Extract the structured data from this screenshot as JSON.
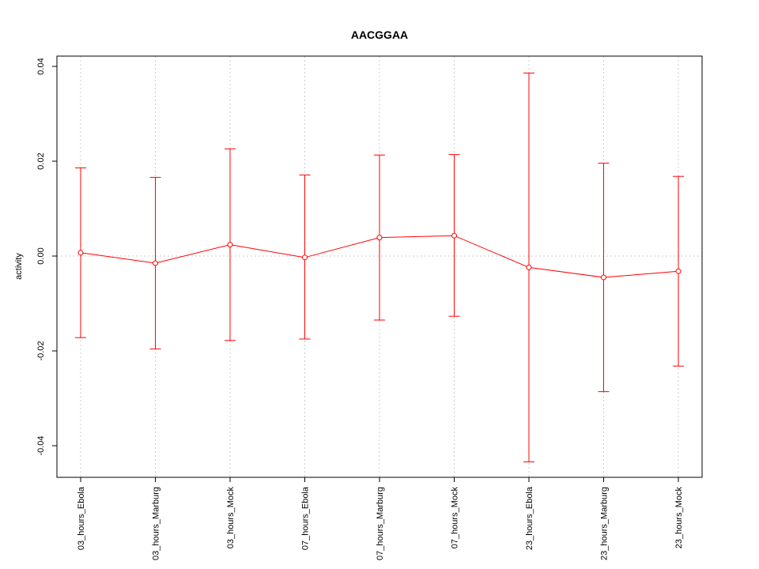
{
  "chart_data": {
    "type": "line",
    "title": "AACGGAA",
    "xlabel": "",
    "ylabel": "activity",
    "categories": [
      "03_hours_Ebola",
      "03_hours_Marburg",
      "03_hours_Mock",
      "07_hours_Ebola",
      "07_hours_Marburg",
      "07_hours_Mock",
      "23_hours_Ebola",
      "23_hours_Marburg",
      "23_hours_Mock"
    ],
    "series": [
      {
        "values": [
          0.0007,
          -0.0015,
          0.0024,
          -0.0003,
          0.0039,
          0.0043,
          -0.0024,
          -0.0045,
          -0.0032
        ],
        "upper": [
          0.0186,
          0.0166,
          0.0226,
          0.0171,
          0.0213,
          0.0214,
          0.0386,
          0.0196,
          0.0168
        ],
        "lower": [
          -0.0172,
          -0.0196,
          -0.0178,
          -0.0175,
          -0.0135,
          -0.0127,
          -0.0434,
          -0.0286,
          -0.0232
        ]
      }
    ],
    "ylim": [
      -0.0467,
      0.04
    ],
    "yticks": [
      -0.04,
      -0.02,
      0.0,
      0.02,
      0.04
    ],
    "ytick_labels": [
      "-0.04",
      "-0.02",
      "0.00",
      "0.02",
      "0.04"
    ],
    "grid": true,
    "color": "#ff0000",
    "grid_color": "#cccccc"
  }
}
